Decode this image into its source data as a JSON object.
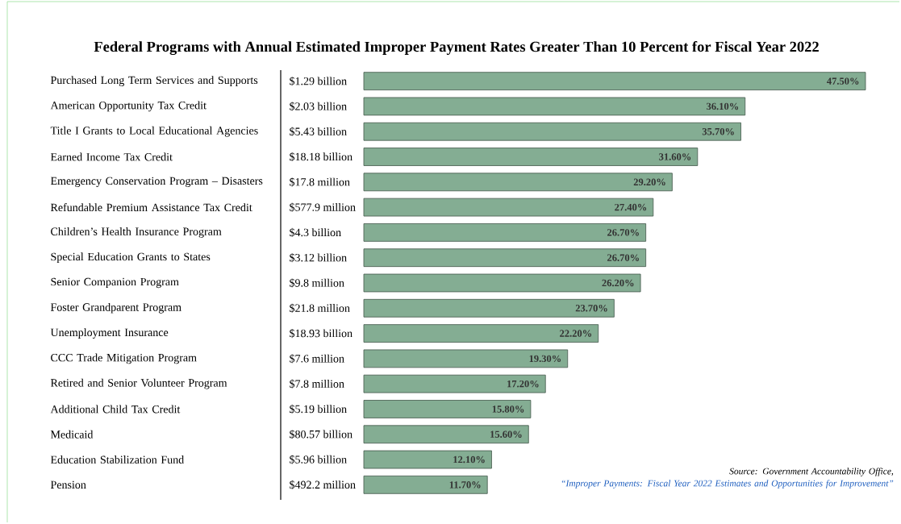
{
  "chart_data": {
    "type": "bar",
    "orientation": "horizontal",
    "title": "Federal Programs with Annual Estimated Improper Payment Rates Greater Than 10 Percent for Fiscal Year 2022",
    "categories": [
      "Purchased Long Term Services and Supports",
      "American Opportunity Tax Credit",
      "Title I Grants to Local Educational Agencies",
      "Earned Income Tax Credit",
      "Emergency Conservation Program – Disasters",
      "Refundable Premium Assistance Tax Credit",
      "Children’s Health Insurance Program",
      "Special Education Grants to States",
      "Senior Companion Program",
      "Foster Grandparent Program",
      "Unemployment Insurance",
      "CCC Trade Mitigation Program",
      "Retired and Senior Volunteer Program",
      "Additional Child Tax Credit",
      "Medicaid",
      "Education Stabilization Fund",
      "Pension"
    ],
    "values": [
      47.5,
      36.1,
      35.7,
      31.6,
      29.2,
      27.4,
      26.7,
      26.7,
      26.2,
      23.7,
      22.2,
      19.3,
      17.2,
      15.8,
      15.6,
      12.1,
      11.7
    ],
    "value_labels": [
      "47.50%",
      "36.10%",
      "35.70%",
      "31.60%",
      "29.20%",
      "27.40%",
      "26.70%",
      "26.70%",
      "26.20%",
      "23.70%",
      "22.20%",
      "19.30%",
      "17.20%",
      "15.80%",
      "15.60%",
      "12.10%",
      "11.70%"
    ],
    "color": "#84ad93",
    "annotations": [
      "$1.29 billion",
      "$2.03 billion",
      "$5.43 billion",
      "$18.18 billion",
      "$17.8 million",
      "$577.9 million",
      "$4.3 billion",
      "$3.12 billion",
      "$9.8 million",
      "$21.8 million",
      "$18.93 billion",
      "$7.6 million",
      "$7.8 million",
      "$5.19 billion",
      "$80.57 billion",
      "$5.96 billion",
      "$492.2 million",
      "Source: Government Accountability Office,",
      "“Improper Payments: Fiscal Year 2022 Estimates and Opportunities for Improvement”"
    ]
  }
}
